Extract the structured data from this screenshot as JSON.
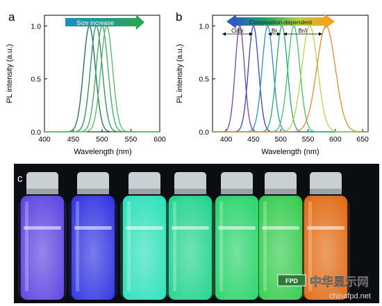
{
  "chart_data": [
    {
      "type": "line",
      "panel_label": "a",
      "xlabel": "Wavelength (nm)",
      "ylabel": "PL intensity (a.u.)",
      "xlim": [
        400,
        600
      ],
      "ylim": [
        0,
        1.1
      ],
      "x_ticks": [
        "400",
        "450",
        "500",
        "550",
        "600"
      ],
      "y_ticks": [
        "0.0",
        "0.5",
        "1.0"
      ],
      "arrow_label": "Size increase",
      "grid": false,
      "series": [
        {
          "peak": 478,
          "fwhm": 24,
          "color": "#1a6b4a",
          "values": [
            1.0
          ]
        },
        {
          "peak": 490,
          "fwhm": 24,
          "color": "#2c8a52",
          "values": [
            1.0
          ]
        },
        {
          "peak": 500,
          "fwhm": 24,
          "color": "#3ea55e",
          "values": [
            1.0
          ]
        },
        {
          "peak": 508,
          "fwhm": 24,
          "color": "#4dbb66",
          "values": [
            1.0
          ]
        }
      ]
    },
    {
      "type": "line",
      "panel_label": "b",
      "xlabel": "Wavelength (nm)",
      "ylabel": "PL intensity (a.u.)",
      "xlim": [
        375,
        660
      ],
      "ylim": [
        0,
        1.1
      ],
      "x_ticks": [
        "400",
        "450",
        "500",
        "550",
        "600",
        "650"
      ],
      "y_ticks": [
        "0.0",
        "0.5",
        "1.0"
      ],
      "arrow_label": "Composition-dependent",
      "group_labels": [
        "Cl/Br",
        "Br",
        "Br/I"
      ],
      "grid": false,
      "series": [
        {
          "peak": 425,
          "fwhm": 20,
          "color": "#7b3fa8",
          "values": [
            1.0
          ]
        },
        {
          "peak": 450,
          "fwhm": 22,
          "color": "#3b3fb8",
          "values": [
            1.0
          ]
        },
        {
          "peak": 476,
          "fwhm": 24,
          "color": "#2a8fc8",
          "values": [
            1.0
          ]
        },
        {
          "peak": 502,
          "fwhm": 24,
          "color": "#2aa76a",
          "values": [
            1.0
          ]
        },
        {
          "peak": 524,
          "fwhm": 26,
          "color": "#3cc36a",
          "values": [
            1.0
          ]
        },
        {
          "peak": 553,
          "fwhm": 34,
          "color": "#b5d24a",
          "values": [
            1.0
          ]
        },
        {
          "peak": 583,
          "fwhm": 40,
          "color": "#e08a3a",
          "values": [
            1.0
          ]
        }
      ]
    }
  ],
  "photo": {
    "panel_label": "c",
    "vials": [
      {
        "glow": "#6a4dff"
      },
      {
        "glow": "#3a3bff"
      },
      {
        "glow": "#35ffd2"
      },
      {
        "glow": "#28f0a0"
      },
      {
        "glow": "#30f07a"
      },
      {
        "glow": "#3fe858"
      },
      {
        "glow": "#ff7a1a"
      }
    ]
  },
  "watermark": {
    "tag": "FPD",
    "chinese": "中华显示网",
    "url": "chinafpd.net"
  }
}
